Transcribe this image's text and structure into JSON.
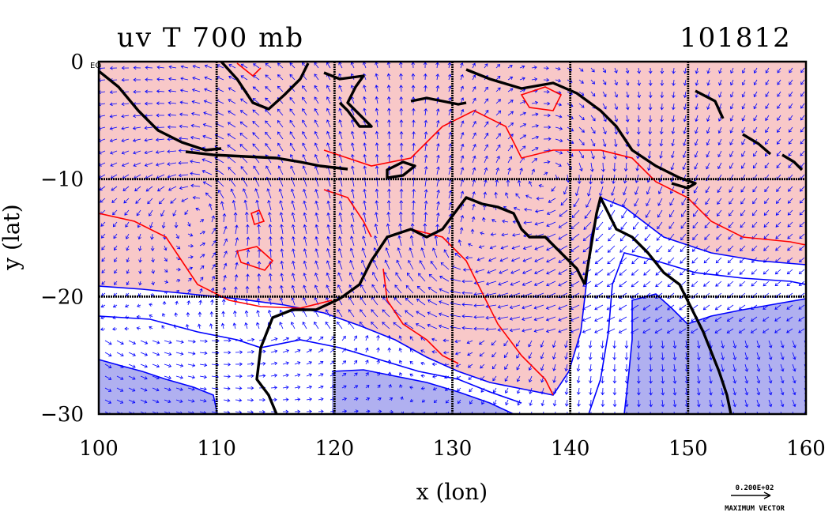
{
  "title_left": "uv T 700 mb",
  "title_right": "101812",
  "axes": {
    "xlabel": "x (lon)",
    "ylabel": "y (lat)",
    "xlim": [
      100,
      160
    ],
    "ylim": [
      -30,
      0
    ],
    "xticks": [
      100,
      110,
      120,
      130,
      140,
      150,
      160
    ],
    "yticks": [
      0,
      -10,
      -20,
      -30
    ],
    "xtick_labels": [
      "100",
      "110",
      "120",
      "130",
      "140",
      "150",
      "160"
    ],
    "ytick_labels": [
      "0",
      "−10",
      "−20",
      "−30"
    ],
    "grid": true
  },
  "corner_label": "EQ",
  "legend": {
    "scale_value": "0.200E+02",
    "caption": "MAXIMUM VECTOR"
  },
  "colors": {
    "warm_fill": "#f8c8c8",
    "cool_fill": "#b0b0f0",
    "warm_contour": "#ff0000",
    "cool_contour": "#0000ff",
    "vector": "#0000ff",
    "coast": "#000000"
  },
  "regions": {
    "warm": "north of about 20S in the west and 15S in the east",
    "cool_deep": [
      "south-west corner",
      "south-east corner",
      "central south band"
    ]
  }
}
